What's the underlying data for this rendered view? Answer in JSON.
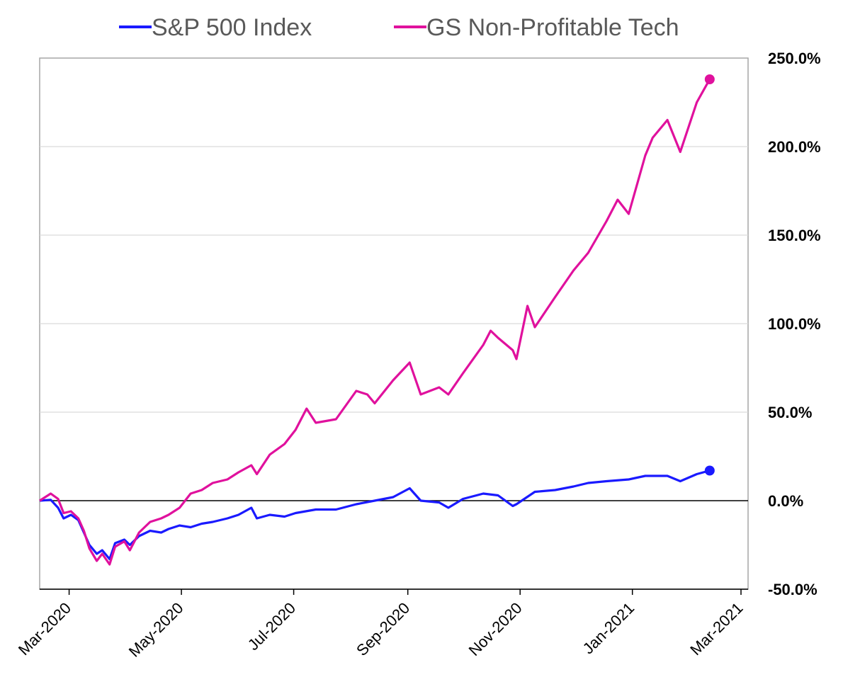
{
  "chart_data": {
    "type": "line",
    "title": "",
    "xlabel": "",
    "ylabel": "",
    "legend_position": "top",
    "grid": true,
    "ylim": [
      -50,
      250
    ],
    "y_ticks": [
      "250.0%",
      "200.0%",
      "150.0%",
      "100.0%",
      "50.0%",
      "0.0%",
      "-50.0%"
    ],
    "y_tick_values": [
      250,
      200,
      150,
      100,
      50,
      0,
      -50
    ],
    "x_ticks": [
      "Mar-2020",
      "May-2020",
      "Jul-2020",
      "Sep-2020",
      "Nov-2020",
      "Jan-2021",
      "Mar-2021"
    ],
    "x_tick_dates": [
      "2020-03-01",
      "2020-05-01",
      "2020-07-01",
      "2020-09-01",
      "2020-11-01",
      "2021-01-01",
      "2021-03-01"
    ],
    "xlim": [
      "2020-02-14",
      "2021-03-01"
    ],
    "series": [
      {
        "name": "S&P 500 Index",
        "color": "#1a1aff",
        "end_marker": true,
        "points": [
          [
            "2020-02-14",
            0
          ],
          [
            "2020-02-20",
            0.5
          ],
          [
            "2020-02-24",
            -4
          ],
          [
            "2020-02-27",
            -10
          ],
          [
            "2020-03-02",
            -8
          ],
          [
            "2020-03-06",
            -11
          ],
          [
            "2020-03-09",
            -18
          ],
          [
            "2020-03-12",
            -25
          ],
          [
            "2020-03-16",
            -30
          ],
          [
            "2020-03-19",
            -28
          ],
          [
            "2020-03-23",
            -33
          ],
          [
            "2020-03-26",
            -24
          ],
          [
            "2020-03-31",
            -22
          ],
          [
            "2020-04-03",
            -25
          ],
          [
            "2020-04-08",
            -20
          ],
          [
            "2020-04-14",
            -17
          ],
          [
            "2020-04-20",
            -18
          ],
          [
            "2020-04-24",
            -16
          ],
          [
            "2020-04-30",
            -14
          ],
          [
            "2020-05-06",
            -15
          ],
          [
            "2020-05-12",
            -13
          ],
          [
            "2020-05-18",
            -12
          ],
          [
            "2020-05-26",
            -10
          ],
          [
            "2020-06-01",
            -8
          ],
          [
            "2020-06-08",
            -4
          ],
          [
            "2020-06-11",
            -10
          ],
          [
            "2020-06-18",
            -8
          ],
          [
            "2020-06-26",
            -9
          ],
          [
            "2020-07-02",
            -7
          ],
          [
            "2020-07-13",
            -5
          ],
          [
            "2020-07-24",
            -5
          ],
          [
            "2020-08-04",
            -2
          ],
          [
            "2020-08-14",
            0
          ],
          [
            "2020-08-24",
            2
          ],
          [
            "2020-09-02",
            7
          ],
          [
            "2020-09-08",
            0
          ],
          [
            "2020-09-18",
            -1
          ],
          [
            "2020-09-23",
            -4
          ],
          [
            "2020-10-01",
            1
          ],
          [
            "2020-10-12",
            4
          ],
          [
            "2020-10-20",
            3
          ],
          [
            "2020-10-28",
            -3
          ],
          [
            "2020-10-30",
            -2
          ],
          [
            "2020-11-09",
            5
          ],
          [
            "2020-11-20",
            6
          ],
          [
            "2020-11-30",
            8
          ],
          [
            "2020-12-08",
            10
          ],
          [
            "2020-12-18",
            11
          ],
          [
            "2020-12-30",
            12
          ],
          [
            "2021-01-08",
            14
          ],
          [
            "2021-01-20",
            14
          ],
          [
            "2021-01-27",
            11
          ],
          [
            "2021-02-05",
            15
          ],
          [
            "2021-02-12",
            17
          ]
        ]
      },
      {
        "name": "GS Non-Profitable Tech",
        "color": "#e0119d",
        "end_marker": true,
        "points": [
          [
            "2020-02-14",
            0
          ],
          [
            "2020-02-20",
            4
          ],
          [
            "2020-02-24",
            1
          ],
          [
            "2020-02-27",
            -7
          ],
          [
            "2020-03-02",
            -6
          ],
          [
            "2020-03-06",
            -10
          ],
          [
            "2020-03-09",
            -17
          ],
          [
            "2020-03-12",
            -27
          ],
          [
            "2020-03-16",
            -34
          ],
          [
            "2020-03-19",
            -30
          ],
          [
            "2020-03-23",
            -36
          ],
          [
            "2020-03-26",
            -26
          ],
          [
            "2020-03-31",
            -23
          ],
          [
            "2020-04-03",
            -28
          ],
          [
            "2020-04-08",
            -18
          ],
          [
            "2020-04-14",
            -12
          ],
          [
            "2020-04-20",
            -10
          ],
          [
            "2020-04-24",
            -8
          ],
          [
            "2020-04-30",
            -4
          ],
          [
            "2020-05-06",
            4
          ],
          [
            "2020-05-12",
            6
          ],
          [
            "2020-05-18",
            10
          ],
          [
            "2020-05-26",
            12
          ],
          [
            "2020-06-01",
            16
          ],
          [
            "2020-06-08",
            20
          ],
          [
            "2020-06-11",
            15
          ],
          [
            "2020-06-18",
            26
          ],
          [
            "2020-06-26",
            32
          ],
          [
            "2020-07-02",
            40
          ],
          [
            "2020-07-08",
            52
          ],
          [
            "2020-07-13",
            44
          ],
          [
            "2020-07-24",
            46
          ],
          [
            "2020-08-04",
            62
          ],
          [
            "2020-08-10",
            60
          ],
          [
            "2020-08-14",
            55
          ],
          [
            "2020-08-24",
            68
          ],
          [
            "2020-09-02",
            78
          ],
          [
            "2020-09-08",
            60
          ],
          [
            "2020-09-18",
            64
          ],
          [
            "2020-09-23",
            60
          ],
          [
            "2020-10-01",
            72
          ],
          [
            "2020-10-12",
            88
          ],
          [
            "2020-10-16",
            96
          ],
          [
            "2020-10-20",
            92
          ],
          [
            "2020-10-28",
            85
          ],
          [
            "2020-10-30",
            80
          ],
          [
            "2020-11-05",
            110
          ],
          [
            "2020-11-09",
            98
          ],
          [
            "2020-11-20",
            115
          ],
          [
            "2020-11-30",
            130
          ],
          [
            "2020-12-08",
            140
          ],
          [
            "2020-12-18",
            158
          ],
          [
            "2020-12-24",
            170
          ],
          [
            "2020-12-30",
            162
          ],
          [
            "2021-01-08",
            195
          ],
          [
            "2021-01-12",
            205
          ],
          [
            "2021-01-20",
            215
          ],
          [
            "2021-01-27",
            197
          ],
          [
            "2021-02-05",
            225
          ],
          [
            "2021-02-12",
            238
          ]
        ]
      }
    ]
  }
}
